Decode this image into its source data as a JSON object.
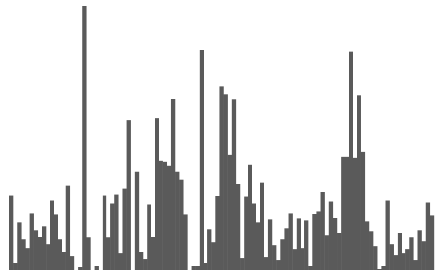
{
  "chart_data": {
    "type": "bar",
    "bar_color": "#5a5a5a",
    "background": "#ffffff",
    "grid": false,
    "axes_visible": false,
    "ylim": [
      0,
      340
    ],
    "values": [
      96,
      10,
      61,
      40,
      28,
      73,
      51,
      43,
      56,
      33,
      89,
      71,
      40,
      24,
      108,
      18,
      0,
      4,
      338,
      42,
      0,
      6,
      0,
      96,
      42,
      85,
      97,
      22,
      104,
      192,
      0,
      126,
      24,
      14,
      84,
      43,
      194,
      140,
      139,
      134,
      219,
      126,
      116,
      71,
      0,
      6,
      6,
      281,
      10,
      52,
      36,
      95,
      235,
      225,
      148,
      218,
      110,
      16,
      94,
      135,
      85,
      61,
      112,
      17,
      65,
      32,
      13,
      40,
      54,
      73,
      27,
      66,
      28,
      64,
      6,
      72,
      75,
      100,
      45,
      88,
      67,
      48,
      145,
      145,
      279,
      144,
      223,
      151,
      63,
      50,
      31,
      2,
      6,
      89,
      33,
      19,
      48,
      22,
      27,
      42,
      13,
      51,
      37,
      87,
      70
    ]
  }
}
